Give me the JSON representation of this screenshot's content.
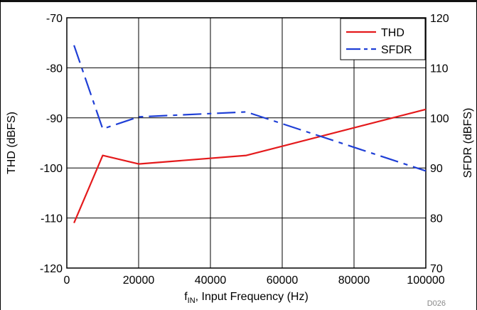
{
  "chart_data": {
    "type": "line",
    "title": "",
    "xlabel_main": "f",
    "xlabel_sub": "IN",
    "xlabel_rest": ", Input Frequency (Hz)",
    "ylabel_left": "THD (dBFS)",
    "ylabel_right": "SFDR (dBFS)",
    "figure_id": "D026",
    "x_range": [
      0,
      100000
    ],
    "x_ticks": [
      0,
      20000,
      40000,
      60000,
      80000,
      100000
    ],
    "x_tick_labels": [
      "0",
      "20000",
      "40000",
      "60000",
      "80000",
      "100000"
    ],
    "y_left_range": [
      -120,
      -70
    ],
    "y_left_ticks": [
      -70,
      -80,
      -90,
      -100,
      -110,
      -120
    ],
    "y_left_tick_labels": [
      "-70",
      "-80",
      "-90",
      "-100",
      "-110",
      "-120"
    ],
    "y_right_range": [
      70,
      120
    ],
    "y_right_ticks": [
      120,
      110,
      100,
      90,
      80,
      70
    ],
    "y_right_tick_labels": [
      "120",
      "110",
      "100",
      "90",
      "80",
      "70"
    ],
    "grid": true,
    "legend_position": "top-right",
    "series": [
      {
        "name": "THD",
        "axis": "left",
        "color": "#e41a1c",
        "style": "solid",
        "x": [
          2000,
          10000,
          20000,
          50000,
          100000
        ],
        "y": [
          -111,
          -97.5,
          -99.2,
          -97.5,
          -88.3
        ]
      },
      {
        "name": "SFDR",
        "axis": "right",
        "color": "#1f3fd6",
        "style": "dashdot",
        "x": [
          2000,
          10000,
          20000,
          50000,
          100000
        ],
        "y": [
          114.5,
          97.8,
          100.2,
          101.2,
          89.4
        ]
      }
    ]
  }
}
